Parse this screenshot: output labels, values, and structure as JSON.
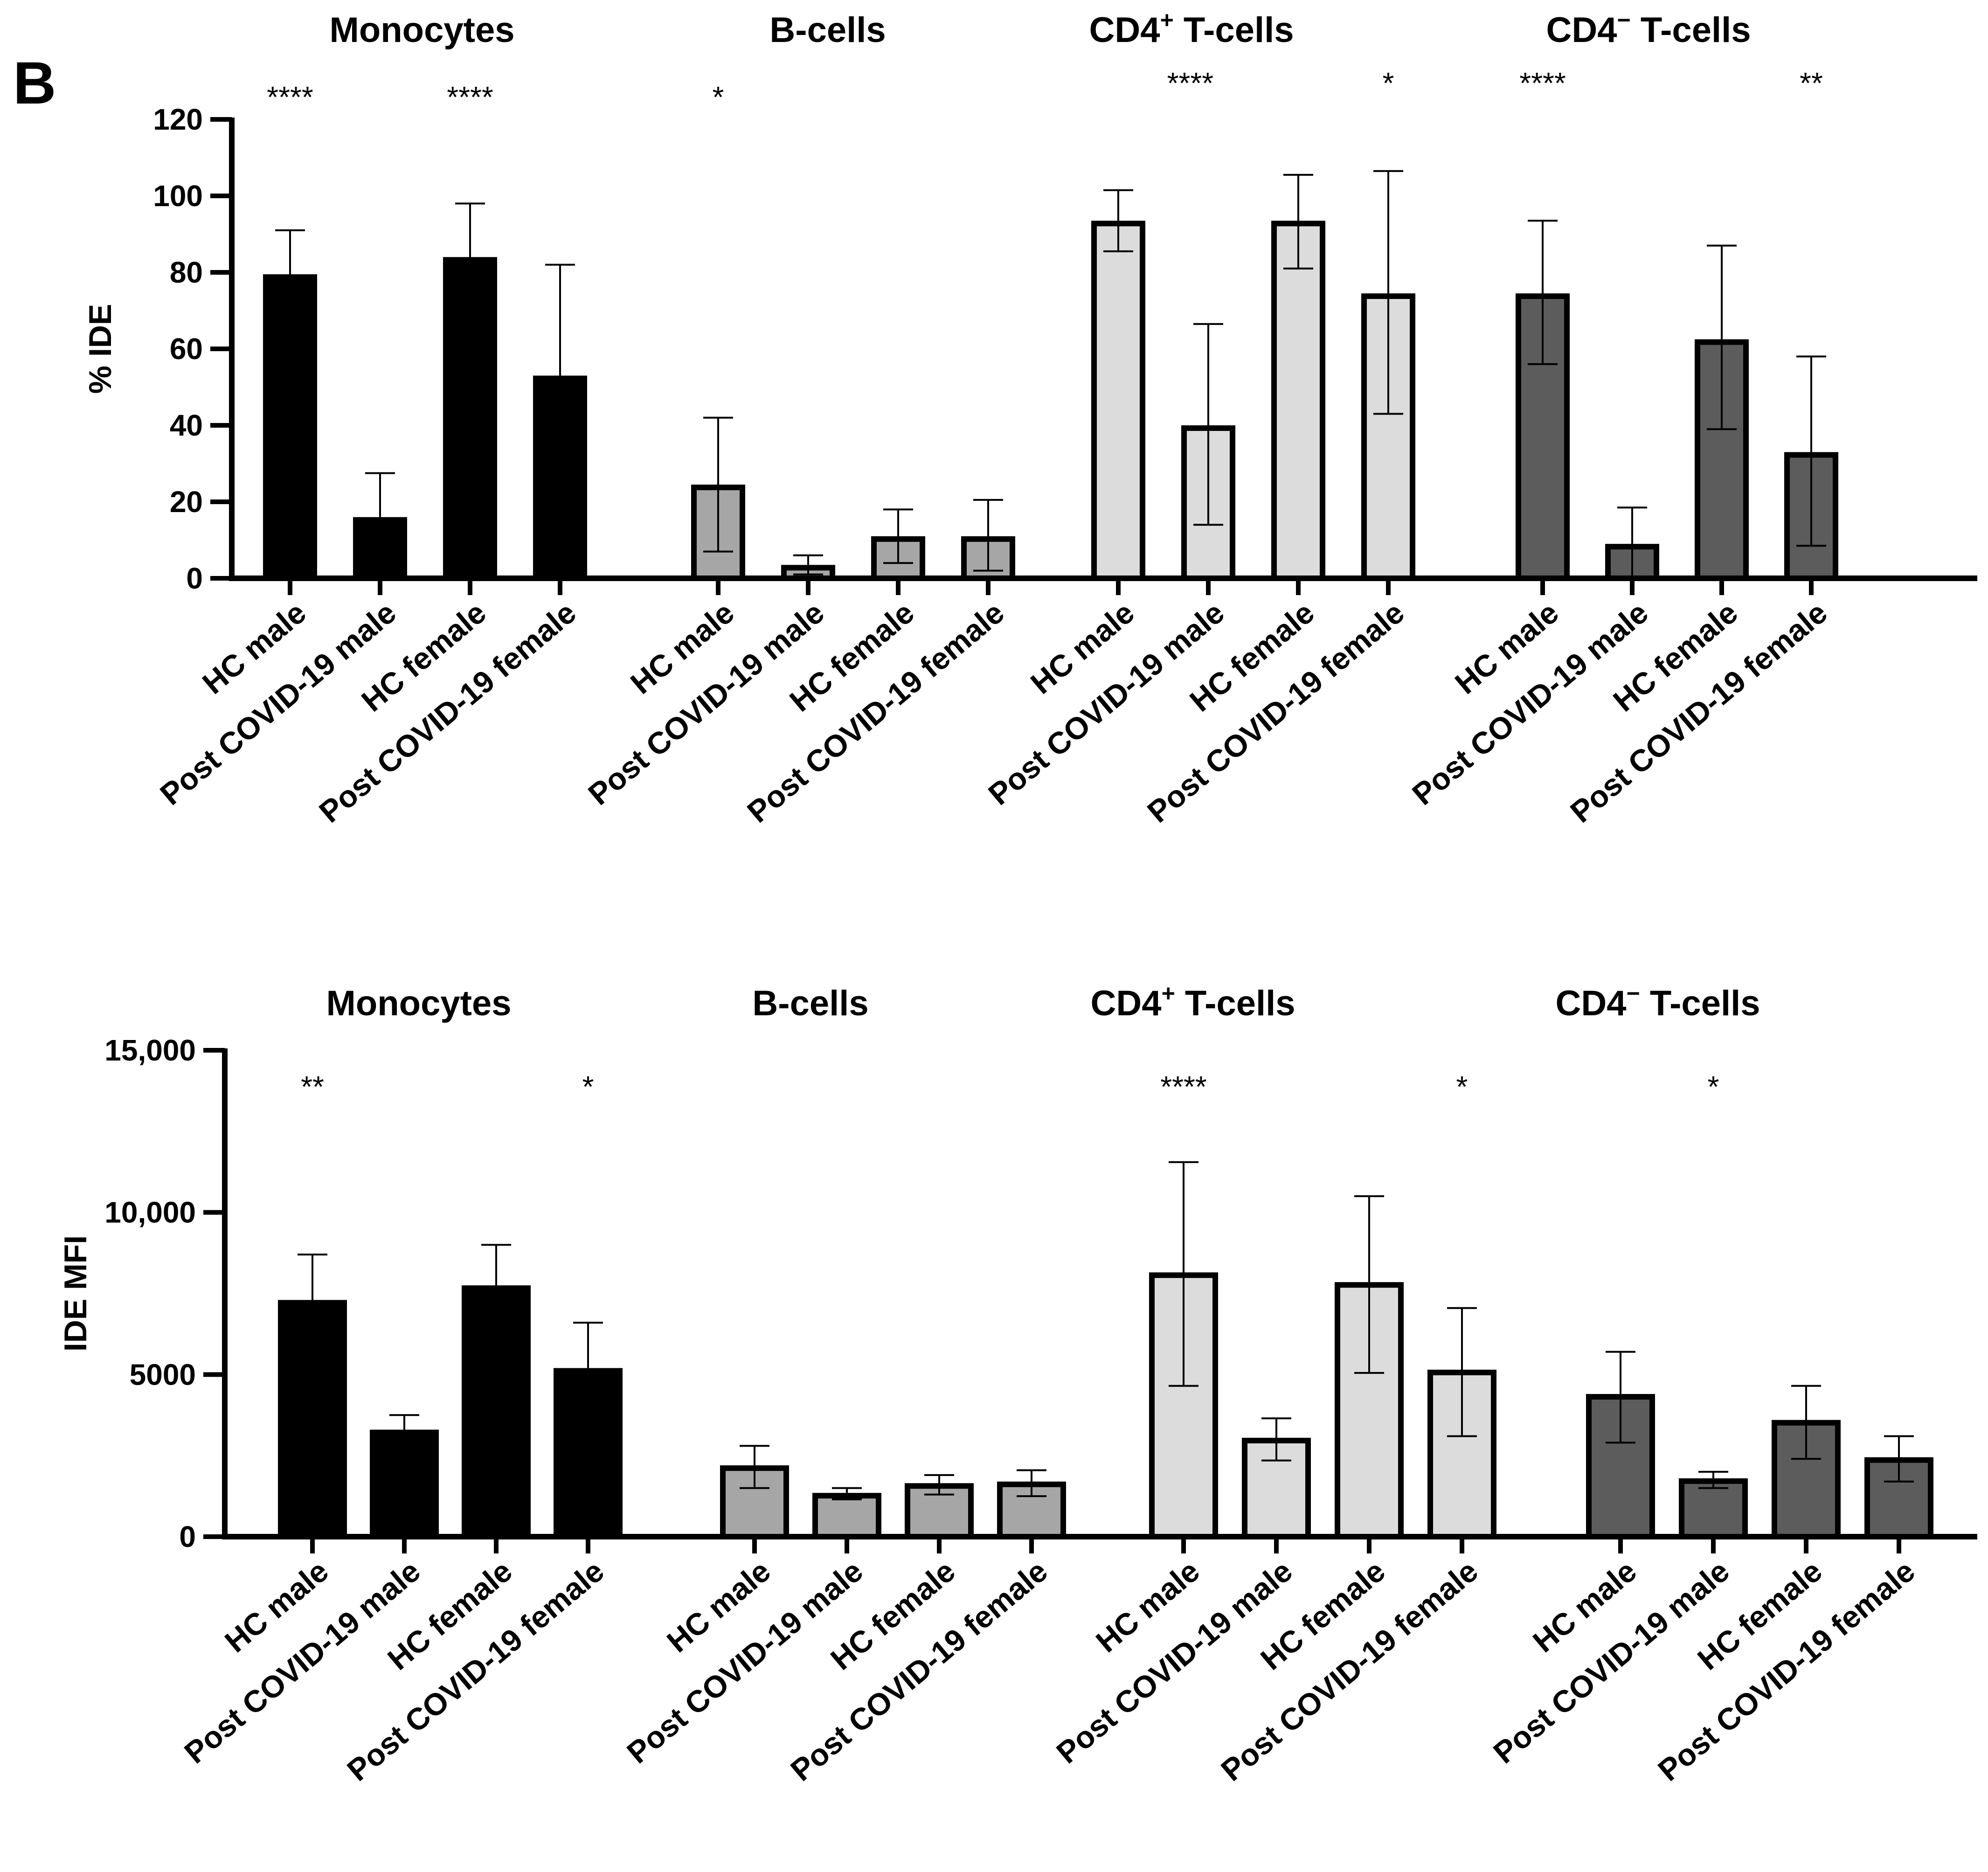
{
  "panel_label": "B",
  "categories": [
    "HC male",
    "Post COVID-19 male",
    "HC female",
    "Post COVID-19 female"
  ],
  "colors": {
    "Monocytes": "#000000",
    "B-cells": "#a6a6a6",
    "CD4+ T-cells": "#dcdcdc",
    "CD4- T-cells": "#5c5c5c",
    "axis": "#000000"
  },
  "chart_data": [
    {
      "type": "bar",
      "ylabel": "% IDE",
      "ylim": [
        0,
        120
      ],
      "yticks": [
        0,
        20,
        40,
        60,
        80,
        100,
        120
      ],
      "ytick_labels": [
        "0",
        "20",
        "40",
        "60",
        "80",
        "100",
        "120"
      ],
      "error_bars": "mean with error bars",
      "groups": [
        {
          "title": "Monocytes",
          "title_main": "Monocytes",
          "title_sup": "",
          "title_tail": "",
          "color_key": "Monocytes",
          "categories": [
            "HC male",
            "Post COVID-19 male",
            "HC female",
            "Post COVID-19 female"
          ],
          "values": [
            79.5,
            16,
            84,
            53
          ],
          "err_upper": [
            91,
            27.5,
            98,
            82
          ],
          "err_lower": [
            79.5,
            16,
            84,
            53
          ],
          "significance": [
            {
              "label": "****",
              "bar": 0
            },
            {
              "label": "****",
              "bar": 2
            }
          ]
        },
        {
          "title": "B-cells",
          "title_main": "B-cells",
          "title_sup": "",
          "title_tail": "",
          "color_key": "B-cells",
          "categories": [
            "HC male",
            "Post COVID-19 male",
            "HC female",
            "Post COVID-19 female"
          ],
          "values": [
            24.5,
            3.5,
            11,
            11
          ],
          "err_upper": [
            42,
            6,
            18,
            20.5
          ],
          "err_lower": [
            7,
            1,
            4,
            2
          ],
          "significance": [
            {
              "label": "*",
              "bar": 0
            }
          ]
        },
        {
          "title": "CD4+ T-cells",
          "title_main": "CD4",
          "title_sup": "+",
          "title_tail": " T-cells",
          "color_key": "CD4+ T-cells",
          "categories": [
            "HC male",
            "Post COVID-19 male",
            "HC female",
            "Post COVID-19 female"
          ],
          "values": [
            93.5,
            40,
            93.5,
            74.5
          ],
          "err_upper": [
            101.5,
            66.5,
            105.5,
            106.5
          ],
          "err_lower": [
            85.5,
            14,
            81,
            43
          ],
          "significance": [
            {
              "label": "****",
              "bar": 0.8
            },
            {
              "label": "*",
              "bar": 3
            }
          ]
        },
        {
          "title": "CD4− T-cells",
          "title_main": "CD4",
          "title_sup": "−",
          "title_tail": "  T-cells",
          "color_key": "CD4- T-cells",
          "categories": [
            "HC male",
            "Post COVID-19 male",
            "HC female",
            "Post COVID-19 female"
          ],
          "values": [
            74.5,
            9,
            62.5,
            33
          ],
          "err_upper": [
            93.5,
            18.5,
            87,
            58
          ],
          "err_lower": [
            56,
            0,
            39,
            8.5
          ],
          "significance": [
            {
              "label": "****",
              "bar": 0
            },
            {
              "label": "**",
              "bar": 3
            }
          ]
        }
      ]
    },
    {
      "type": "bar",
      "ylabel": "IDE MFI",
      "ylim": [
        0,
        15000
      ],
      "yticks": [
        0,
        5000,
        10000,
        15000
      ],
      "ytick_labels": [
        "0",
        "5000",
        "10,000",
        "15,000"
      ],
      "error_bars": "mean with error bars",
      "groups": [
        {
          "title": "Monocytes",
          "title_main": "Monocytes",
          "title_sup": "",
          "title_tail": "",
          "color_key": "Monocytes",
          "categories": [
            "HC male",
            "Post COVID-19 male",
            "HC female",
            "Post COVID-19 female"
          ],
          "values": [
            7300,
            3300,
            7750,
            5200
          ],
          "err_upper": [
            8700,
            3750,
            9000,
            6600
          ],
          "err_lower": [
            7300,
            3300,
            7750,
            5200
          ],
          "significance": [
            {
              "label": "**",
              "bar": 0
            },
            {
              "label": "*",
              "bar": 3
            }
          ]
        },
        {
          "title": "B-cells",
          "title_main": "B-cells",
          "title_sup": "",
          "title_tail": "",
          "color_key": "B-cells",
          "categories": [
            "HC male",
            "Post COVID-19 male",
            "HC female",
            "Post COVID-19 female"
          ],
          "values": [
            2200,
            1350,
            1650,
            1700
          ],
          "err_upper": [
            2800,
            1500,
            1900,
            2050
          ],
          "err_lower": [
            1500,
            1150,
            1300,
            1250
          ],
          "significance": []
        },
        {
          "title": "CD4+ T-cells",
          "title_main": "CD4",
          "title_sup": "+",
          "title_tail": " T-cells",
          "color_key": "CD4+ T-cells",
          "categories": [
            "HC male",
            "Post COVID-19 male",
            "HC female",
            "Post COVID-19 female"
          ],
          "values": [
            8150,
            3050,
            7850,
            5150
          ],
          "err_upper": [
            11550,
            3650,
            10500,
            7050
          ],
          "err_lower": [
            4650,
            2350,
            5050,
            3100
          ],
          "significance": [
            {
              "label": "****",
              "bar": 0
            },
            {
              "label": "*",
              "bar": 3
            }
          ]
        },
        {
          "title": "CD4− T-cells",
          "title_main": "CD4",
          "title_sup": "−",
          "title_tail": "  T-cells",
          "color_key": "CD4- T-cells",
          "categories": [
            "HC male",
            "Post COVID-19 male",
            "HC female",
            "Post COVID-19 female"
          ],
          "values": [
            4400,
            1800,
            3600,
            2450
          ],
          "err_upper": [
            5700,
            2000,
            4650,
            3100
          ],
          "err_lower": [
            2900,
            1500,
            2400,
            1700
          ],
          "significance": [
            {
              "label": "*",
              "bar": 1
            }
          ]
        }
      ]
    }
  ]
}
